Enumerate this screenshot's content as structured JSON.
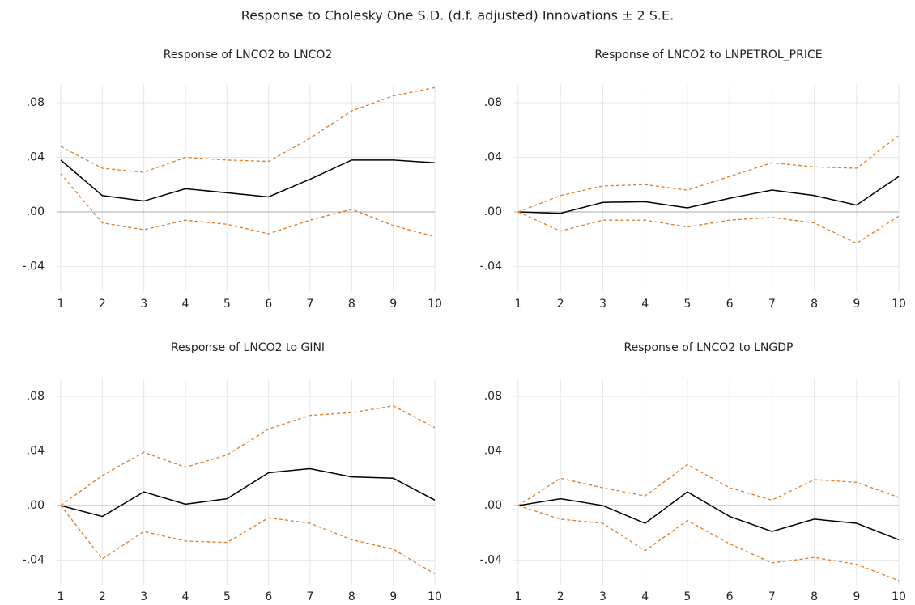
{
  "title": "Response to Cholesky One S.D. (d.f. adjusted) Innovations ± 2 S.E.",
  "chart_data": [
    {
      "type": "line",
      "title": "Response of LNCO2 to LNCO2",
      "x": [
        1,
        2,
        3,
        4,
        5,
        6,
        7,
        8,
        9,
        10
      ],
      "xlim": [
        1,
        10
      ],
      "xticks": [
        1,
        2,
        3,
        4,
        5,
        6,
        7,
        8,
        9,
        10
      ],
      "ylim": [
        -0.058,
        0.093
      ],
      "yticks": [
        {
          "value": -0.04,
          "label": "-.04"
        },
        {
          "value": 0,
          "label": ".00"
        },
        {
          "value": 0.04,
          "label": ".04"
        },
        {
          "value": 0.08,
          "label": ".08"
        }
      ],
      "grid": true,
      "series": [
        {
          "color": "#000000",
          "dashed": false,
          "values": [
            0.038,
            0.012,
            0.008,
            0.017,
            0.014,
            0.011,
            0.024,
            0.038,
            0.038,
            0.036
          ]
        },
        {
          "color": "#e07b2a",
          "dashed": true,
          "values": [
            0.048,
            0.032,
            0.029,
            0.04,
            0.038,
            0.037,
            0.054,
            0.074,
            0.085,
            0.091
          ]
        },
        {
          "color": "#e07b2a",
          "dashed": true,
          "values": [
            0.028,
            -0.008,
            -0.013,
            -0.006,
            -0.009,
            -0.016,
            -0.006,
            0.002,
            -0.01,
            -0.018
          ]
        }
      ]
    },
    {
      "type": "line",
      "title": "Response of LNCO2 to LNPETROL_PRICE",
      "x": [
        1,
        2,
        3,
        4,
        5,
        6,
        7,
        8,
        9,
        10
      ],
      "xlim": [
        1,
        10
      ],
      "xticks": [
        1,
        2,
        3,
        4,
        5,
        6,
        7,
        8,
        9,
        10
      ],
      "ylim": [
        -0.058,
        0.093
      ],
      "yticks": [
        {
          "value": -0.04,
          "label": "-.04"
        },
        {
          "value": 0,
          "label": ".00"
        },
        {
          "value": 0.04,
          "label": ".04"
        },
        {
          "value": 0.08,
          "label": ".08"
        }
      ],
      "grid": true,
      "series": [
        {
          "color": "#000000",
          "dashed": false,
          "values": [
            0,
            -0.001,
            0.007,
            0.0075,
            0.003,
            0.01,
            0.016,
            0.012,
            0.005,
            0.026
          ]
        },
        {
          "color": "#e07b2a",
          "dashed": true,
          "values": [
            0,
            0.012,
            0.019,
            0.02,
            0.016,
            0.026,
            0.036,
            0.033,
            0.032,
            0.056
          ]
        },
        {
          "color": "#e07b2a",
          "dashed": true,
          "values": [
            0,
            -0.014,
            -0.006,
            -0.006,
            -0.011,
            -0.006,
            -0.004,
            -0.008,
            -0.023,
            -0.003
          ]
        }
      ]
    },
    {
      "type": "line",
      "title": "Response of LNCO2 to GINI",
      "x": [
        1,
        2,
        3,
        4,
        5,
        6,
        7,
        8,
        9,
        10
      ],
      "xlim": [
        1,
        10
      ],
      "xticks": [
        1,
        2,
        3,
        4,
        5,
        6,
        7,
        8,
        9,
        10
      ],
      "ylim": [
        -0.058,
        0.093
      ],
      "yticks": [
        {
          "value": -0.04,
          "label": "-.04"
        },
        {
          "value": 0,
          "label": ".00"
        },
        {
          "value": 0.04,
          "label": ".04"
        },
        {
          "value": 0.08,
          "label": ".08"
        }
      ],
      "grid": true,
      "series": [
        {
          "color": "#000000",
          "dashed": false,
          "values": [
            0,
            -0.008,
            0.01,
            0.001,
            0.005,
            0.024,
            0.027,
            0.021,
            0.02,
            0.004
          ]
        },
        {
          "color": "#e07b2a",
          "dashed": true,
          "values": [
            0,
            0.022,
            0.039,
            0.028,
            0.037,
            0.056,
            0.066,
            0.068,
            0.073,
            0.057
          ]
        },
        {
          "color": "#e07b2a",
          "dashed": true,
          "values": [
            0,
            -0.039,
            -0.019,
            -0.026,
            -0.027,
            -0.009,
            -0.013,
            -0.025,
            -0.032,
            -0.05
          ]
        }
      ]
    },
    {
      "type": "line",
      "title": "Response of LNCO2 to LNGDP",
      "x": [
        1,
        2,
        3,
        4,
        5,
        6,
        7,
        8,
        9,
        10
      ],
      "xlim": [
        1,
        10
      ],
      "xticks": [
        1,
        2,
        3,
        4,
        5,
        6,
        7,
        8,
        9,
        10
      ],
      "ylim": [
        -0.058,
        0.093
      ],
      "yticks": [
        {
          "value": -0.04,
          "label": "-.04"
        },
        {
          "value": 0,
          "label": ".00"
        },
        {
          "value": 0.04,
          "label": ".04"
        },
        {
          "value": 0.08,
          "label": ".08"
        }
      ],
      "grid": true,
      "series": [
        {
          "color": "#000000",
          "dashed": false,
          "values": [
            0,
            0.005,
            0.0,
            -0.013,
            0.01,
            -0.008,
            -0.019,
            -0.01,
            -0.013,
            -0.025
          ]
        },
        {
          "color": "#e07b2a",
          "dashed": true,
          "values": [
            0,
            0.02,
            0.013,
            0.007,
            0.03,
            0.013,
            0.004,
            0.019,
            0.017,
            0.006
          ]
        },
        {
          "color": "#e07b2a",
          "dashed": true,
          "values": [
            0,
            -0.01,
            -0.013,
            -0.033,
            -0.011,
            -0.028,
            -0.042,
            -0.038,
            -0.043,
            -0.055
          ]
        }
      ]
    }
  ]
}
